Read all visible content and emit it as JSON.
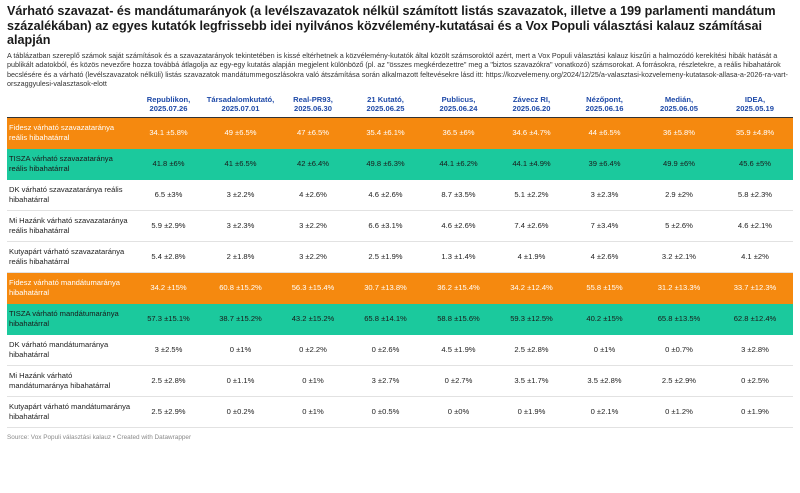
{
  "title": "Várható szavazat- és mandátumarányok (a levélszavazatok nélkül számított listás szavazatok, illetve a 199 parlamenti mandátum százalékában) az egyes kutatók legfrissebb idei nyilvános közvélemény-kutatásai és a Vox Populi választási kalauz számításai alapján",
  "intro": "A táblázatban szereplő számok saját számítások és a szavazatarányok tekintetében is kissé eltérhetnek a közvélemény-kutatók által közölt számsoroktól azért, mert a Vox Populi választási kalauz kiszűri a halmozódó kerekítési hibák hatását a publikált adatokból, és közös nevezőre hozza továbbá átlagolja az egy-egy kutatás alapján megjelent különböző (pl. az \"összes megkérdezettre\" meg a \"biztos szavazókra\" vonatkozó) számsorokat. A forrásokra, részletekre, a reális hibahatárok becslésére és a várható (levélszavazatok nélküli) listás szavazatok mandátummegoszlásokra való átszámítása során alkalmazott feltevésekre lásd itt: https://kozvelemeny.org/2024/12/25/a-valasztasi-kozvelemeny-kutatasok-allasa-a-2026-ra-vart-orszaggyulesi-valasztasok-elott",
  "columns": [
    {
      "name": "Republikon,",
      "date": "2025.07.26"
    },
    {
      "name": "Társadalomkutató,",
      "date": "2025.07.01"
    },
    {
      "name": "Real-PR93,",
      "date": "2025.06.30"
    },
    {
      "name": "21 Kutató,",
      "date": "2025.06.25"
    },
    {
      "name": "Publicus,",
      "date": "2025.06.24"
    },
    {
      "name": "Závecz RI,",
      "date": "2025.06.20"
    },
    {
      "name": "Nézőpont,",
      "date": "2025.06.16"
    },
    {
      "name": "Medián,",
      "date": "2025.06.05"
    },
    {
      "name": "IDEA,",
      "date": "2025.05.19"
    }
  ],
  "rows": [
    {
      "style": "orange",
      "label": "Fidesz várható szavazataránya reális hibahatárral",
      "values": [
        "34.1 ±5.8%",
        "49 ±6.5%",
        "47 ±6.5%",
        "35.4 ±6.1%",
        "36.5 ±6%",
        "34.6 ±4.7%",
        "44 ±6.5%",
        "36 ±5.8%",
        "35.9 ±4.8%"
      ]
    },
    {
      "style": "green",
      "label": "TISZA várható szavazataránya reális hibahatárral",
      "values": [
        "41.8 ±6%",
        "41 ±6.5%",
        "42 ±6.4%",
        "49.8 ±6.3%",
        "44.1 ±6.2%",
        "44.1 ±4.9%",
        "39 ±6.4%",
        "49.9 ±6%",
        "45.6 ±5%"
      ]
    },
    {
      "style": "plain",
      "label": "DK várható szavazataránya reális hibahatárral",
      "values": [
        "6.5 ±3%",
        "3 ±2.2%",
        "4 ±2.6%",
        "4.6 ±2.6%",
        "8.7 ±3.5%",
        "5.1 ±2.2%",
        "3 ±2.3%",
        "2.9 ±2%",
        "5.8 ±2.3%"
      ]
    },
    {
      "style": "plain",
      "label": "Mi Hazánk várható szavazataránya reális hibahatárral",
      "values": [
        "5.9 ±2.9%",
        "3 ±2.3%",
        "3 ±2.2%",
        "6.6 ±3.1%",
        "4.6 ±2.6%",
        "7.4 ±2.6%",
        "7 ±3.4%",
        "5 ±2.6%",
        "4.6 ±2.1%"
      ]
    },
    {
      "style": "plain",
      "label": "Kutyapárt várható szavazataránya reális hibahatárral",
      "values": [
        "5.4 ±2.8%",
        "2 ±1.8%",
        "3 ±2.2%",
        "2.5 ±1.9%",
        "1.3 ±1.4%",
        "4 ±1.9%",
        "4 ±2.6%",
        "3.2 ±2.1%",
        "4.1 ±2%"
      ]
    },
    {
      "style": "orange",
      "label": "Fidesz várható mandátumaránya hibahatárral",
      "values": [
        "34.2 ±15%",
        "60.8 ±15.2%",
        "56.3 ±15.4%",
        "30.7 ±13.8%",
        "36.2 ±15.4%",
        "34.2 ±12.4%",
        "55.8 ±15%",
        "31.2 ±13.3%",
        "33.7 ±12.3%"
      ]
    },
    {
      "style": "green",
      "label": "TISZA várható mandátumaránya hibahatárral",
      "values": [
        "57.3 ±15.1%",
        "38.7 ±15.2%",
        "43.2 ±15.2%",
        "65.8 ±14.1%",
        "58.8 ±15.6%",
        "59.3 ±12.5%",
        "40.2 ±15%",
        "65.8 ±13.5%",
        "62.8 ±12.4%"
      ]
    },
    {
      "style": "plain",
      "label": "DK várható mandátumaránya hibahatárral",
      "values": [
        "3 ±2.5%",
        "0 ±1%",
        "0 ±2.2%",
        "0 ±2.6%",
        "4.5 ±1.9%",
        "2.5 ±2.8%",
        "0 ±1%",
        "0 ±0.7%",
        "3 ±2.8%"
      ]
    },
    {
      "style": "plain",
      "label": "Mi Hazánk várható mandátumaránya hibahatárral",
      "values": [
        "2.5 ±2.8%",
        "0 ±1.1%",
        "0 ±1%",
        "3 ±2.7%",
        "0 ±2.7%",
        "3.5 ±1.7%",
        "3.5 ±2.8%",
        "2.5 ±2.9%",
        "0 ±2.5%"
      ]
    },
    {
      "style": "plain",
      "label": "Kutyapárt várható mandátumaránya hibahatárral",
      "values": [
        "2.5 ±2.9%",
        "0 ±0.2%",
        "0 ±1%",
        "0 ±0.5%",
        "0 ±0%",
        "0 ±1.9%",
        "0 ±2.1%",
        "0 ±1.2%",
        "0 ±1.9%"
      ]
    }
  ],
  "footer": "Source: Vox Populi választási kalauz • Created with Datawrapper",
  "colors": {
    "orange": "#f5890f",
    "green": "#1bc99d",
    "header_text": "#1f4aa8"
  }
}
